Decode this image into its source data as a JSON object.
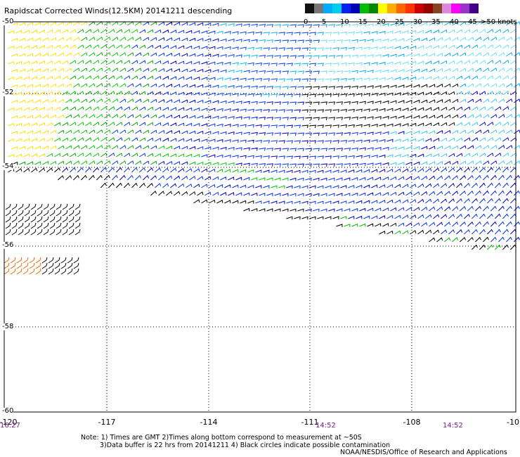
{
  "header": {
    "title": "Rapidscat Corrected Winds(12.5KM) 20141211 descending"
  },
  "color_scale": {
    "colors": [
      "#111111",
      "#777777",
      "#00aaff",
      "#00ccee",
      "#0022ee",
      "#0000bb",
      "#00bb00",
      "#008800",
      "#ffff00",
      "#ffaa00",
      "#ff6600",
      "#ff3300",
      "#cc0000",
      "#990000",
      "#884422",
      "#dd88dd",
      "#ff00ff",
      "#9933cc",
      "#440088"
    ],
    "ticks": [
      "0",
      "5",
      "10",
      "15",
      "20",
      "25",
      "30",
      "35",
      "40",
      "45"
    ],
    "top_label": ">50 knots"
  },
  "axes": {
    "x_ticks": [
      "-120",
      "-117",
      "-114",
      "-111",
      "-108",
      "-10"
    ],
    "y_ticks": [
      "-50",
      "-52",
      "-54",
      "-56",
      "-58",
      "-60"
    ]
  },
  "time_labels": [
    "16:27",
    "14:52",
    "14:52"
  ],
  "notes": {
    "line1": "Note: 1) Times are GMT 2)Times along bottom correspond to measurement at ~50S",
    "line2": "3)Data buffer is 22 hrs from 20141211 4) Black circles indicate possible contamination"
  },
  "credit": "NOAA/NESDIS/Office of Research and Applications"
}
